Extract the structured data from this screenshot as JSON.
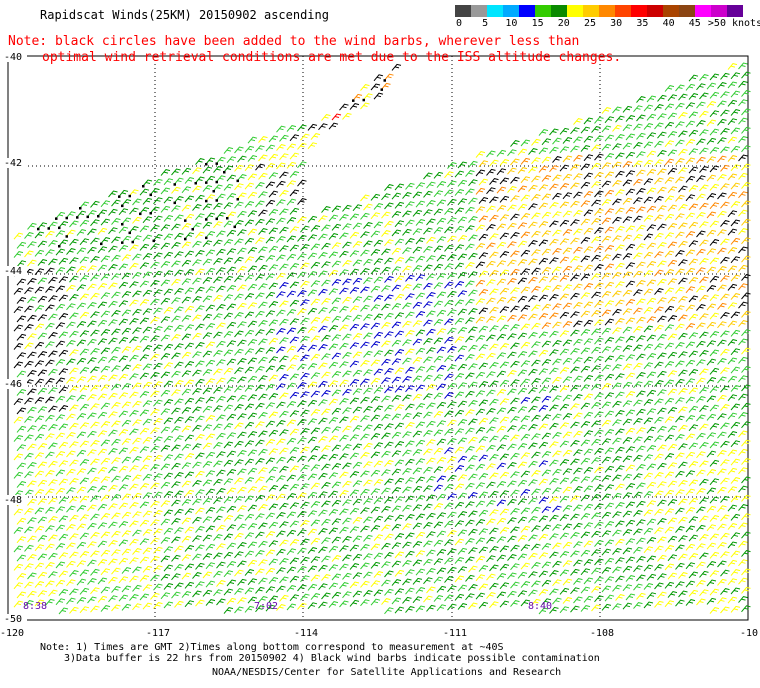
{
  "header": {
    "title": "Rapidscat Winds(25KM) 20150902 ascending"
  },
  "note": {
    "line1": "Note: black circles have been added to the wind barbs, wherever less than",
    "line2": "optimal wind retrieval conditions are met due to the ISS altitude changes."
  },
  "legend": {
    "labels": [
      "0",
      "5",
      "10",
      "15",
      "20",
      "25",
      "30",
      "35",
      "40",
      "45",
      ">50 knots"
    ],
    "colors": [
      "#444444",
      "#999999",
      "#00e5ff",
      "#00aaff",
      "#0000ff",
      "#33cc00",
      "#0a8a00",
      "#ffff00",
      "#ffcc00",
      "#ff8800",
      "#ff4400",
      "#ff0000",
      "#cc0000",
      "#aa4400",
      "#8b4513",
      "#ff00ff",
      "#cc00cc",
      "#660099"
    ]
  },
  "map": {
    "lon_labels": [
      "-120",
      "-117",
      "-114",
      "-111",
      "-108",
      "-10"
    ],
    "lat_labels": [
      "-40",
      "-42",
      "-44",
      "-46",
      "-48",
      "-50"
    ],
    "pass_times": [
      "8:38",
      "7:02",
      "8:40"
    ],
    "wind_colors": {
      "calm": "#0000cc",
      "light": "#009900",
      "moderate": "#33cc33",
      "fresh": "#ffff00",
      "strong": "#ffcc00",
      "gale": "#ff8800",
      "storm": "#ff0000",
      "contaminated": "#000000"
    }
  },
  "footer": {
    "line1": "Note: 1) Times are GMT 2)Times along bottom correspond to measurement at ~40S",
    "line2": "3)Data buffer is 22 hrs from 20150902 4) Black wind barbs indicate possible contamination",
    "line3": "NOAA/NESDIS/Center for Satellite Applications and Research"
  }
}
